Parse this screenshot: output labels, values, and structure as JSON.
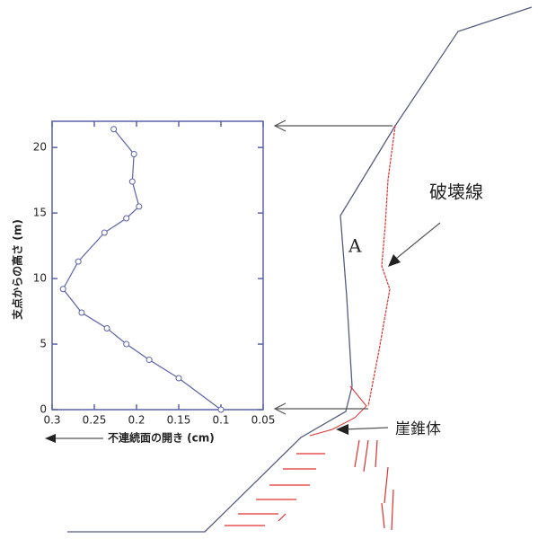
{
  "chart_data": {
    "type": "line",
    "x_label": "不連続面の開き (cm)",
    "y_label": "支点からの高さ (m)",
    "xlim": [
      0.3,
      0.05
    ],
    "xticks": [
      0.3,
      0.25,
      0.2,
      0.15,
      0.1,
      0.05
    ],
    "ylim": [
      0,
      22
    ],
    "yticks": [
      0,
      5,
      10,
      15,
      20
    ],
    "series": [
      {
        "color": "#5a62a8",
        "x": [
          0.1,
          0.15,
          0.185,
          0.212,
          0.235,
          0.265,
          0.287,
          0.269,
          0.238,
          0.212,
          0.197,
          0.205,
          0.203,
          0.227
        ],
        "values": [
          0,
          2.4,
          3.8,
          5.0,
          6.2,
          7.4,
          9.2,
          11.3,
          13.5,
          14.6,
          15.5,
          17.4,
          19.5,
          21.4
        ]
      }
    ],
    "annotations": [
      "破壊線",
      "A",
      "崖錐体"
    ]
  }
}
